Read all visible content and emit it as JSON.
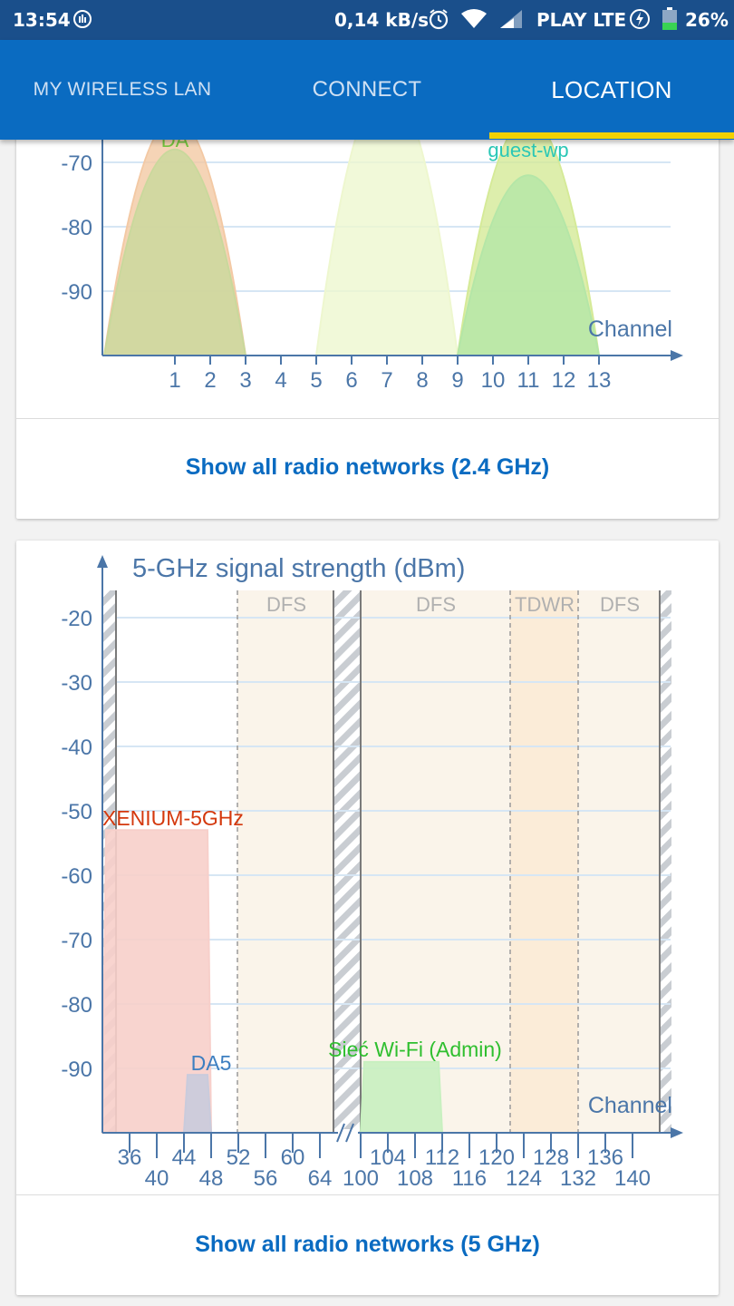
{
  "status": {
    "time": "13:54",
    "speed": "0,14 kB/s",
    "carrier": "PLAY LTE",
    "battery": "26%"
  },
  "tabs": [
    {
      "label": "MY WIRELESS LAN",
      "active": false
    },
    {
      "label": "CONNECT",
      "active": false
    },
    {
      "label": "LOCATION",
      "active": true
    }
  ],
  "colors": {
    "appbar": "#0a6bc1",
    "tab_indicator": "#f2d100",
    "axis": "#4b76a8"
  },
  "chart24": {
    "x_label": "Channel",
    "button": "Show all radio networks (2.4 GHz)"
  },
  "chart5": {
    "title": "5-GHz signal strength (dBm)",
    "x_label": "Channel",
    "bands": [
      "DFS",
      "DFS",
      "TDWR",
      "DFS"
    ],
    "button": "Show all radio networks (5 GHz)"
  },
  "chart_data": [
    {
      "type": "area",
      "title": "",
      "xlabel": "Channel",
      "ylabel": "",
      "x_ticks": [
        1,
        2,
        3,
        4,
        5,
        6,
        7,
        8,
        9,
        10,
        11,
        12,
        13
      ],
      "y_ticks": [
        -70,
        -80,
        -90
      ],
      "y_floor": -100,
      "xlim": [
        -1,
        14
      ],
      "series": [
        {
          "name": "DA",
          "from": -1,
          "to": 3,
          "peak": -63,
          "color": "#f3c9a4"
        },
        {
          "name": "",
          "from": -1,
          "to": 3,
          "peak": -68,
          "color": "#c9d89c"
        },
        {
          "name": "",
          "from": 5,
          "to": 9,
          "peak": -58,
          "color": "#eef7cf"
        },
        {
          "name": "",
          "from": 9,
          "to": 13,
          "peak": -63,
          "color": "#d5ea97"
        },
        {
          "name": "guest-wp",
          "from": 9,
          "to": 13,
          "peak": -72,
          "color": "#b4e6a7"
        }
      ]
    },
    {
      "type": "area",
      "title": "5-GHz signal strength (dBm)",
      "xlabel": "Channel",
      "ylabel": "",
      "x_ticks_low": [
        36,
        40,
        44,
        48,
        52,
        56,
        60,
        64
      ],
      "x_ticks_high": [
        100,
        104,
        108,
        112,
        116,
        120,
        124,
        128,
        132,
        136,
        140
      ],
      "y_ticks": [
        -20,
        -30,
        -40,
        -50,
        -60,
        -70,
        -80,
        -90
      ],
      "y_floor": -100,
      "series": [
        {
          "name": "XENIUM-5GHz",
          "from": 32,
          "to": 48,
          "level": -53,
          "color": "#f7cfca",
          "label_color": "#d4380d"
        },
        {
          "name": "DA5",
          "from": 44,
          "to": 48,
          "level": -91,
          "color": "#c9cbdc",
          "label_color": "#3d7fc1"
        },
        {
          "name": "Sieć Wi-Fi (Admin)",
          "from": 100,
          "to": 112,
          "level": -89,
          "color": "#c8f0c0",
          "label_color": "#2fbf2f"
        }
      ]
    }
  ]
}
